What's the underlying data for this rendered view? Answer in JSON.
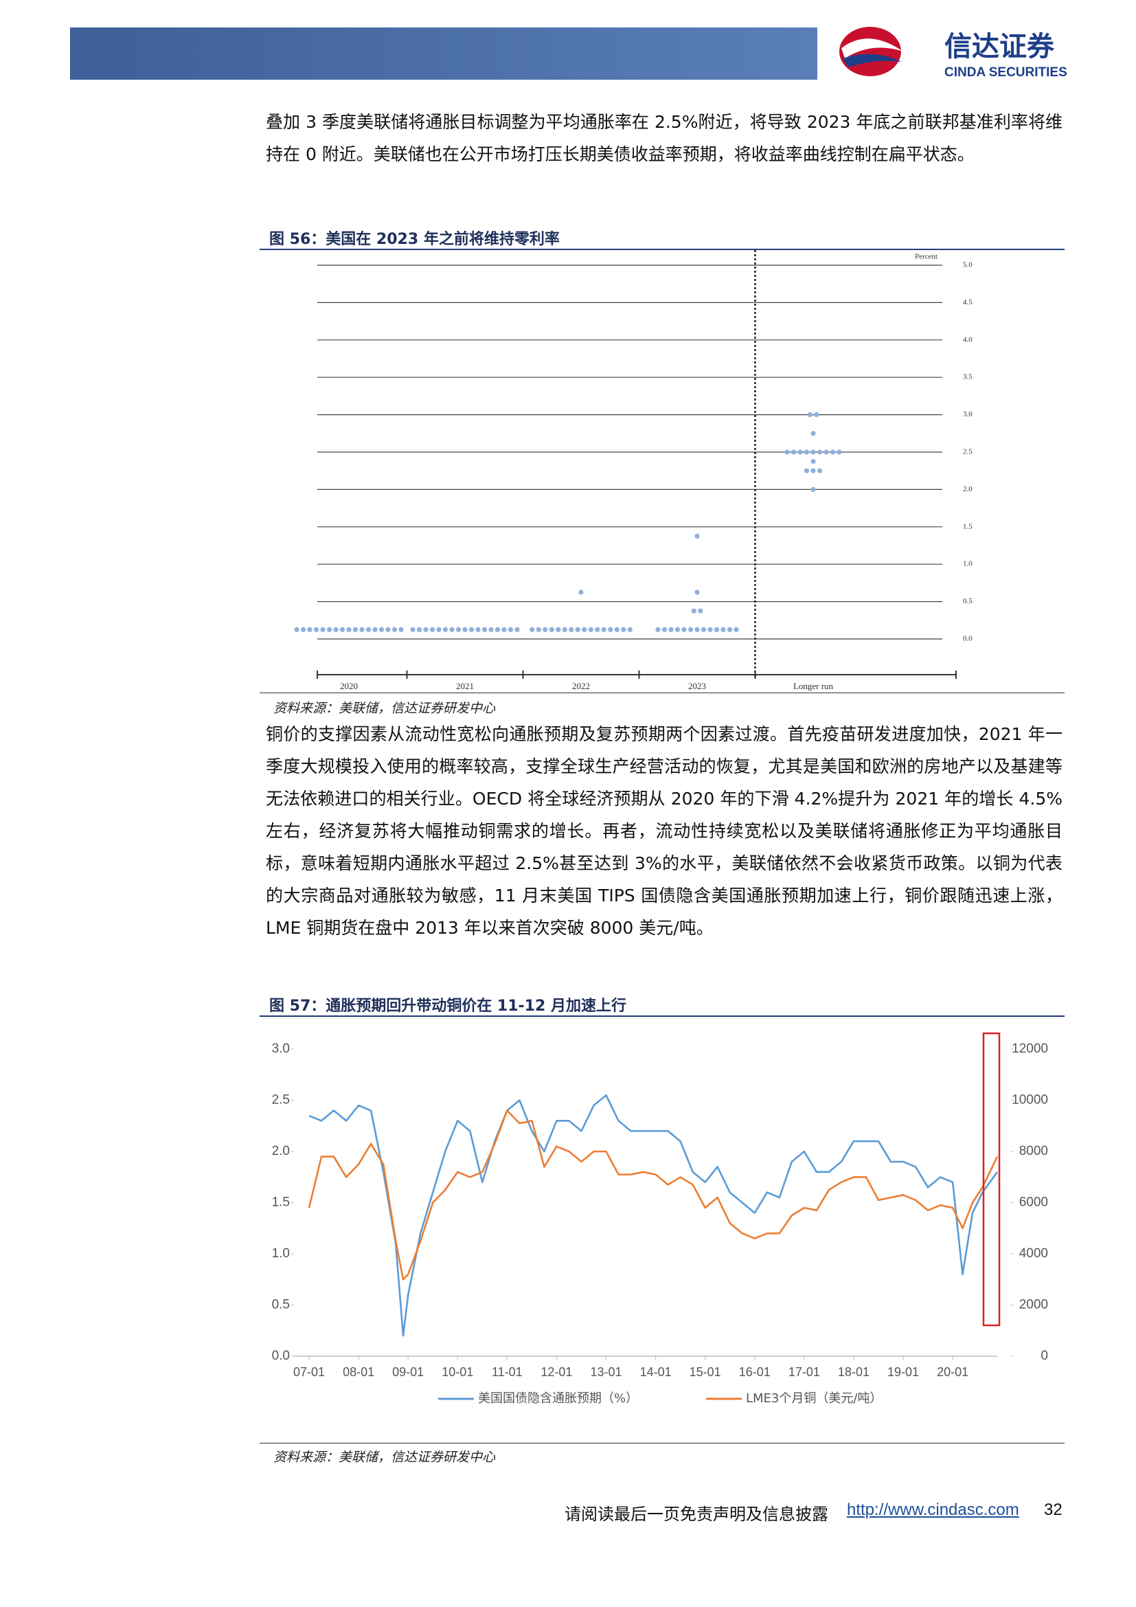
{
  "header": {
    "logo_name": "信达证券",
    "logo_subtitle": "CINDA SECURITIES"
  },
  "paragraphs": [
    "叠加 3 季度美联储将通胀目标调整为平均通胀率在 2.5%附近，将导致 2023 年底之前联邦基准利率将维持在 0 附近。美联储也在公开市场打压长期美债收益率预期，将收益率曲线控制在扁平状态。",
    "铜价的支撑因素从流动性宽松向通胀预期及复苏预期两个因素过渡。首先疫苗研发进度加快，2021 年一季度大规模投入使用的概率较高，支撑全球生产经营活动的恢复，尤其是美国和欧洲的房地产以及基建等无法依赖进口的相关行业。OECD 将全球经济预期从 2020 年的下滑 4.2%提升为 2021 年的增长 4.5%左右，经济复苏将大幅推动铜需求的增长。再者，流动性持续宽松以及美联储将通胀修正为平均通胀目标，意味着短期内通胀水平超过 2.5%甚至达到 3%的水平，美联储依然不会收紧货币政策。以铜为代表的大宗商品对通胀较为敏感，11 月末美国 TIPS 国债隐含美国通胀预期加速上行，铜价跟随迅速上涨，LME 铜期货在盘中 2013 年以来首次突破 8000 美元/吨。"
  ],
  "figures": [
    {
      "title": "图 56：美国在 2023 年之前将维持零利率",
      "source": "资料来源：美联储，信达证券研发中心",
      "chart_data": {
        "type": "dot",
        "y_label": "Percent",
        "categories": [
          "2020",
          "2021",
          "2022",
          "2023",
          "Longer run"
        ],
        "color": "#8fb0dc",
        "dots": [
          [
            0.125,
            0.125,
            0.125,
            0.125,
            0.125,
            0.125,
            0.125,
            0.125,
            0.125,
            0.125,
            0.125,
            0.125,
            0.125,
            0.125,
            0.125,
            0.125,
            0.125
          ],
          [
            0.125,
            0.125,
            0.125,
            0.125,
            0.125,
            0.125,
            0.125,
            0.125,
            0.125,
            0.125,
            0.125,
            0.125,
            0.125,
            0.125,
            0.125,
            0.125,
            0.125
          ],
          [
            0.125,
            0.125,
            0.125,
            0.125,
            0.125,
            0.125,
            0.125,
            0.125,
            0.125,
            0.125,
            0.125,
            0.125,
            0.125,
            0.125,
            0.125,
            0.125,
            0.625
          ],
          [
            0.125,
            0.125,
            0.125,
            0.125,
            0.125,
            0.125,
            0.125,
            0.125,
            0.125,
            0.125,
            0.125,
            0.125,
            0.125,
            0.375,
            0.375,
            0.625,
            1.375
          ],
          [
            2.0,
            2.25,
            2.25,
            2.25,
            2.375,
            2.5,
            2.5,
            2.5,
            2.5,
            2.5,
            2.5,
            2.5,
            2.5,
            2.5,
            2.75,
            3.0,
            3.0
          ]
        ],
        "ylim": [
          0,
          5
        ],
        "yticks": [
          {
            "value": 0,
            "label": "0.0"
          },
          {
            "value": 0.5,
            "label": "0.5"
          },
          {
            "value": 1,
            "label": "1.0"
          },
          {
            "value": 1.5,
            "label": "1.5"
          },
          {
            "value": 2,
            "label": "2.0"
          },
          {
            "value": 2.5,
            "label": "2.5"
          },
          {
            "value": 3,
            "label": "3.0"
          },
          {
            "value": 3.5,
            "label": "3.5"
          },
          {
            "value": 4,
            "label": "4.0"
          },
          {
            "value": 4.5,
            "label": "4.5"
          },
          {
            "value": 5,
            "label": "5.0"
          }
        ],
        "grid": true
      }
    },
    {
      "title": "图 57：通胀预期回升带动铜价在 11-12 月加速上行",
      "source": "资料来源：美联储，信达证券研发中心",
      "chart_data": {
        "type": "line",
        "xlim": [
          2007,
          2020.9
        ],
        "xticks": [
          {
            "value": 2007,
            "label": "07-01"
          },
          {
            "value": 2008,
            "label": "08-01"
          },
          {
            "value": 2009,
            "label": "09-01"
          },
          {
            "value": 2010,
            "label": "10-01"
          },
          {
            "value": 2011,
            "label": "11-01"
          },
          {
            "value": 2012,
            "label": "12-01"
          },
          {
            "value": 2013,
            "label": "13-01"
          },
          {
            "value": 2014,
            "label": "14-01"
          },
          {
            "value": 2015,
            "label": "15-01"
          },
          {
            "value": 2016,
            "label": "16-01"
          },
          {
            "value": 2017,
            "label": "17-01"
          },
          {
            "value": 2018,
            "label": "18-01"
          },
          {
            "value": 2019,
            "label": "19-01"
          },
          {
            "value": 2020,
            "label": "20-01"
          }
        ],
        "ylim": [
          0,
          3
        ],
        "yticks": [
          {
            "value": 0,
            "label": "0.0"
          },
          {
            "value": 0.5,
            "label": "0.5"
          },
          {
            "value": 1,
            "label": "1.0"
          },
          {
            "value": 1.5,
            "label": "1.5"
          },
          {
            "value": 2,
            "label": "2.0"
          },
          {
            "value": 2.5,
            "label": "2.5"
          },
          {
            "value": 3,
            "label": "3.0"
          }
        ],
        "y2lim": [
          0,
          12000
        ],
        "y2ticks": [
          0,
          2000,
          4000,
          6000,
          8000,
          10000,
          12000
        ],
        "x": [
          2007,
          2007.25,
          2007.5,
          2007.75,
          2008,
          2008.25,
          2008.5,
          2008.75,
          2008.9,
          2009,
          2009.25,
          2009.5,
          2009.75,
          2010,
          2010.25,
          2010.5,
          2010.75,
          2011,
          2011.25,
          2011.5,
          2011.75,
          2012,
          2012.25,
          2012.5,
          2012.75,
          2013,
          2013.25,
          2013.5,
          2013.75,
          2014,
          2014.25,
          2014.5,
          2014.75,
          2015,
          2015.25,
          2015.5,
          2015.75,
          2016,
          2016.25,
          2016.5,
          2016.75,
          2017,
          2017.25,
          2017.5,
          2017.75,
          2018,
          2018.25,
          2018.5,
          2018.75,
          2019,
          2019.25,
          2019.5,
          2019.75,
          2020,
          2020.2,
          2020.4,
          2020.6,
          2020.9
        ],
        "series": [
          {
            "name": "美国国债隐含通胀预期（%）",
            "color": "#5b9bd5",
            "values": [
              2.35,
              2.3,
              2.4,
              2.3,
              2.45,
              2.4,
              1.8,
              1.1,
              0.2,
              0.6,
              1.2,
              1.6,
              2.0,
              2.3,
              2.2,
              1.7,
              2.1,
              2.4,
              2.5,
              2.2,
              2.0,
              2.3,
              2.3,
              2.2,
              2.45,
              2.55,
              2.3,
              2.2,
              2.2,
              2.2,
              2.2,
              2.1,
              1.8,
              1.7,
              1.85,
              1.6,
              1.5,
              1.4,
              1.6,
              1.55,
              1.9,
              2.0,
              1.8,
              1.8,
              1.9,
              2.1,
              2.1,
              2.1,
              1.9,
              1.9,
              1.85,
              1.65,
              1.75,
              1.7,
              0.8,
              1.4,
              1.6,
              1.8
            ]
          },
          {
            "name": "LME3个月铜（美元/吨）",
            "color": "#ed7d31",
            "axis": "y2",
            "values": [
              5800,
              7800,
              7800,
              7000,
              7500,
              8300,
              7500,
              4500,
              3000,
              3200,
              4500,
              6000,
              6500,
              7200,
              7000,
              7200,
              8300,
              9600,
              9100,
              9200,
              7400,
              8200,
              8000,
              7600,
              8000,
              8000,
              7100,
              7100,
              7200,
              7100,
              6700,
              7000,
              6700,
              5800,
              6200,
              5200,
              4800,
              4600,
              4800,
              4800,
              5500,
              5800,
              5700,
              6500,
              6800,
              7000,
              7000,
              6100,
              6200,
              6300,
              6100,
              5700,
              5900,
              5800,
              5000,
              6000,
              6600,
              7800
            ]
          }
        ]
      }
    }
  ],
  "footer": {
    "disclaimer": "请阅读最后一页免责声明及信息披露",
    "url": "http://www.cindasc.com",
    "page": 32
  }
}
